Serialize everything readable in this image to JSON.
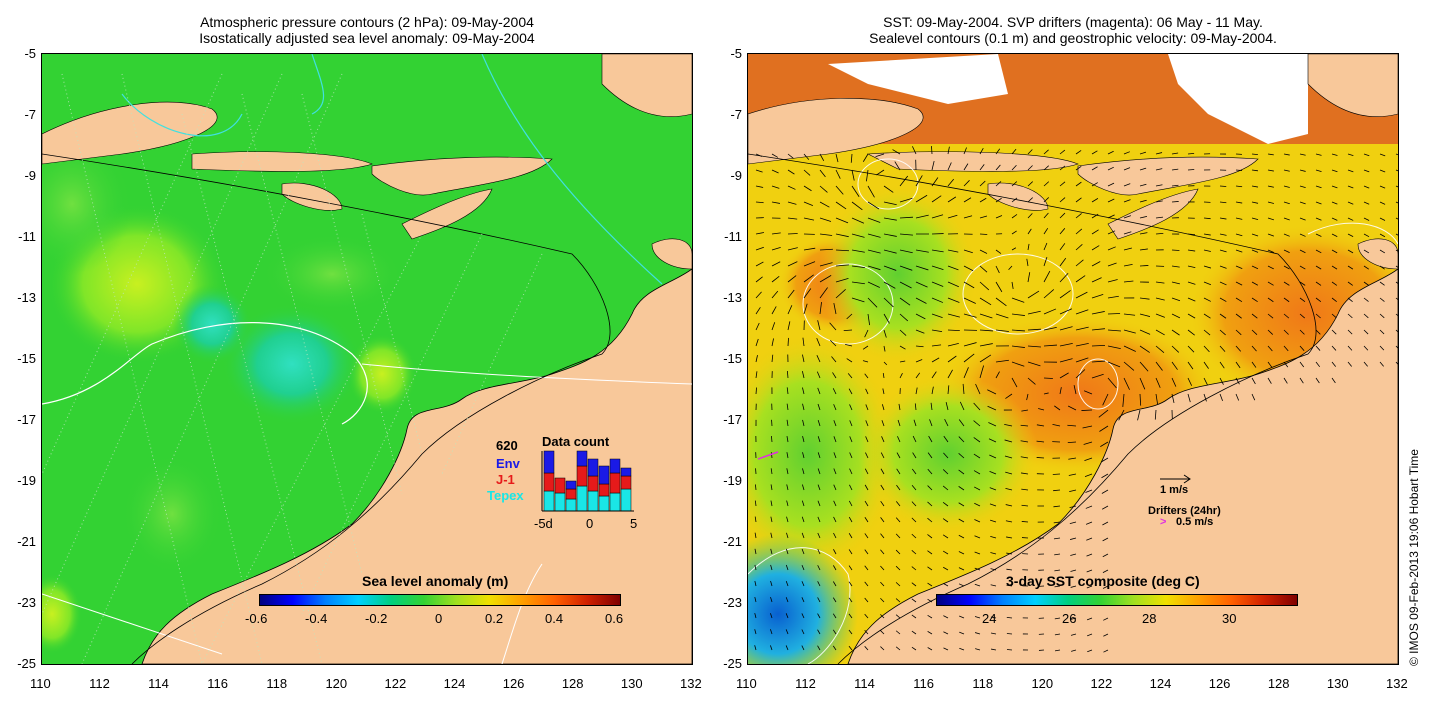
{
  "left_panel": {
    "title_line1": "Atmospheric pressure contours (2 hPa): 09-May-2004",
    "title_line2": "Isostatically adjusted sea level anomaly: 09-May-2004",
    "colorbar": {
      "title": "Sea level anomaly (m)",
      "ticks": [
        "-0.6",
        "-0.4",
        "-0.2",
        "0",
        "0.2",
        "0.4",
        "0.6"
      ],
      "range": [
        -0.6,
        0.6
      ]
    },
    "data_count": {
      "title": "Data count",
      "max_label": "620",
      "legend": [
        {
          "label": "Env",
          "color": "#1a1ae6"
        },
        {
          "label": "J-1",
          "color": "#e61a1a"
        },
        {
          "label": "Tepex",
          "color": "#1ae6e6"
        }
      ],
      "x_ticks": [
        "-5d",
        "0",
        "5"
      ]
    }
  },
  "right_panel": {
    "title_line1": "SST: 09-May-2004. SVP drifters (magenta): 06 May - 11 May.",
    "title_line2": "Sealevel contours (0.1 m) and geostrophic velocity: 09-May-2004.",
    "colorbar": {
      "title": "3-day SST composite (deg C)",
      "ticks": [
        "24",
        "26",
        "28",
        "30"
      ],
      "range": [
        22.5,
        31.5
      ]
    },
    "velocity_scale_label": "1 m/s",
    "drifters_label": "Drifters (24hr)",
    "drifters_scale_label": "0.5 m/s"
  },
  "axes": {
    "lon_ticks": [
      "110",
      "112",
      "114",
      "116",
      "118",
      "120",
      "122",
      "124",
      "126",
      "128",
      "130",
      "132"
    ],
    "lat_ticks": [
      "-5",
      "-7",
      "-9",
      "-11",
      "-13",
      "-15",
      "-17",
      "-19",
      "-21",
      "-23",
      "-25"
    ],
    "lon_range": [
      110,
      132
    ],
    "lat_range": [
      -25,
      -5
    ]
  },
  "credit": "© IMOS 09-Feb-2013 19:06 Hobart Time",
  "colors": {
    "land": "#f8c89a",
    "sla_background": "#33d233",
    "sst_background": "#f0d010"
  }
}
